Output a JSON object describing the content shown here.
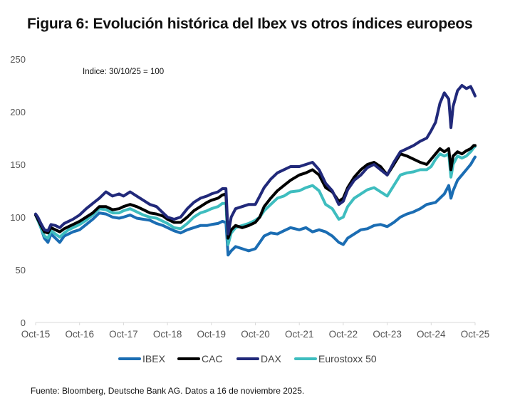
{
  "title": "Figura 6: Evolución histórica del Ibex vs otros índices europeos",
  "source": "Fuente: Bloomberg, Deutsche Bank AG. Datos a 16 de noviembre  2025.",
  "chart_data": {
    "type": "line",
    "title": "Figura 6: Evolución histórica del Ibex vs otros índices europeos",
    "annotation": "Indice: 30/10/25 = 100",
    "xlabel": "",
    "ylabel": "",
    "ylim": [
      0,
      250
    ],
    "yticks": [
      0,
      50,
      100,
      150,
      200,
      250
    ],
    "xlim_years_since_oct15": [
      0,
      10
    ],
    "xtick_labels": [
      "Oct-15",
      "Oct-16",
      "Oct-17",
      "Oct-18",
      "Oct-19",
      "Oct-20",
      "Oct-21",
      "Oct-22",
      "Oct-23",
      "Oct-24",
      "Oct-25"
    ],
    "grid": false,
    "legend_position": "bottom",
    "x_unit": "years since Oct-15",
    "series": [
      {
        "name": "IBEX",
        "color": "#1b6db3",
        "x": [
          0,
          0.05,
          0.12,
          0.2,
          0.28,
          0.35,
          0.45,
          0.55,
          0.65,
          0.75,
          0.85,
          1.0,
          1.15,
          1.3,
          1.45,
          1.6,
          1.75,
          1.9,
          2.0,
          2.15,
          2.3,
          2.45,
          2.6,
          2.75,
          2.9,
          3.0,
          3.15,
          3.3,
          3.45,
          3.6,
          3.75,
          3.9,
          4.0,
          4.15,
          4.25,
          4.33,
          4.38,
          4.45,
          4.55,
          4.7,
          4.85,
          5.0,
          5.1,
          5.2,
          5.35,
          5.5,
          5.65,
          5.8,
          6.0,
          6.15,
          6.3,
          6.45,
          6.6,
          6.75,
          6.9,
          7.0,
          7.1,
          7.25,
          7.4,
          7.55,
          7.7,
          7.85,
          8.0,
          8.15,
          8.3,
          8.45,
          8.6,
          8.75,
          8.9,
          9.0,
          9.1,
          9.2,
          9.3,
          9.4,
          9.45,
          9.5,
          9.6,
          9.7,
          9.8,
          9.9,
          9.97,
          10.0
        ],
        "values": [
          102,
          98,
          90,
          80,
          76,
          84,
          80,
          76,
          82,
          84,
          86,
          88,
          93,
          98,
          104,
          103,
          100,
          99,
          100,
          102,
          99,
          98,
          97,
          94,
          92,
          90,
          87,
          85,
          88,
          90,
          92,
          92,
          93,
          94,
          96,
          95,
          64,
          68,
          72,
          70,
          68,
          70,
          76,
          82,
          85,
          84,
          87,
          90,
          88,
          90,
          86,
          88,
          86,
          82,
          76,
          74,
          80,
          84,
          88,
          89,
          92,
          93,
          91,
          95,
          100,
          103,
          105,
          108,
          112,
          113,
          114,
          118,
          122,
          130,
          118,
          125,
          135,
          140,
          145,
          150,
          155,
          157
        ]
      },
      {
        "name": "CAC",
        "color": "#000000",
        "x": [
          0,
          0.05,
          0.12,
          0.2,
          0.28,
          0.35,
          0.45,
          0.55,
          0.65,
          0.75,
          0.85,
          1.0,
          1.15,
          1.3,
          1.45,
          1.6,
          1.75,
          1.9,
          2.0,
          2.15,
          2.3,
          2.45,
          2.6,
          2.75,
          2.9,
          3.0,
          3.15,
          3.3,
          3.45,
          3.6,
          3.75,
          3.9,
          4.0,
          4.15,
          4.25,
          4.33,
          4.38,
          4.45,
          4.55,
          4.7,
          4.85,
          5.0,
          5.1,
          5.2,
          5.35,
          5.5,
          5.65,
          5.8,
          6.0,
          6.15,
          6.3,
          6.45,
          6.6,
          6.75,
          6.9,
          7.0,
          7.1,
          7.25,
          7.4,
          7.55,
          7.7,
          7.85,
          8.0,
          8.15,
          8.3,
          8.45,
          8.6,
          8.75,
          8.9,
          9.0,
          9.1,
          9.2,
          9.3,
          9.4,
          9.45,
          9.5,
          9.6,
          9.7,
          9.8,
          9.9,
          9.97,
          10.0
        ],
        "values": [
          102,
          98,
          92,
          86,
          85,
          90,
          88,
          86,
          89,
          91,
          93,
          96,
          100,
          104,
          110,
          110,
          107,
          108,
          110,
          112,
          110,
          107,
          104,
          103,
          101,
          98,
          95,
          95,
          100,
          106,
          110,
          114,
          116,
          118,
          121,
          122,
          80,
          88,
          92,
          90,
          92,
          95,
          100,
          110,
          118,
          125,
          130,
          135,
          140,
          142,
          145,
          140,
          128,
          124,
          115,
          118,
          128,
          138,
          145,
          150,
          152,
          148,
          140,
          150,
          160,
          158,
          155,
          152,
          150,
          155,
          160,
          165,
          162,
          165,
          145,
          158,
          162,
          160,
          163,
          165,
          168,
          168
        ]
      },
      {
        "name": "DAX",
        "color": "#21297a",
        "x": [
          0,
          0.05,
          0.12,
          0.2,
          0.28,
          0.35,
          0.45,
          0.55,
          0.65,
          0.75,
          0.85,
          1.0,
          1.15,
          1.3,
          1.45,
          1.6,
          1.75,
          1.9,
          2.0,
          2.15,
          2.3,
          2.45,
          2.6,
          2.75,
          2.9,
          3.0,
          3.15,
          3.3,
          3.45,
          3.6,
          3.75,
          3.9,
          4.0,
          4.15,
          4.25,
          4.33,
          4.38,
          4.45,
          4.55,
          4.7,
          4.85,
          5.0,
          5.1,
          5.2,
          5.35,
          5.5,
          5.65,
          5.8,
          6.0,
          6.15,
          6.3,
          6.45,
          6.6,
          6.75,
          6.9,
          7.0,
          7.1,
          7.25,
          7.4,
          7.55,
          7.7,
          7.85,
          8.0,
          8.15,
          8.3,
          8.45,
          8.6,
          8.75,
          8.9,
          9.0,
          9.1,
          9.2,
          9.3,
          9.4,
          9.45,
          9.5,
          9.6,
          9.7,
          9.8,
          9.9,
          9.97,
          10.0
        ],
        "values": [
          103,
          100,
          94,
          88,
          87,
          93,
          92,
          90,
          94,
          96,
          98,
          102,
          108,
          113,
          118,
          124,
          120,
          122,
          120,
          124,
          120,
          116,
          112,
          110,
          104,
          100,
          98,
          100,
          108,
          114,
          118,
          120,
          122,
          124,
          127,
          127,
          84,
          100,
          108,
          110,
          112,
          112,
          120,
          128,
          136,
          142,
          145,
          148,
          148,
          150,
          152,
          145,
          132,
          125,
          112,
          115,
          126,
          135,
          140,
          147,
          150,
          145,
          140,
          152,
          162,
          165,
          168,
          172,
          175,
          182,
          190,
          208,
          218,
          212,
          185,
          205,
          220,
          225,
          222,
          224,
          218,
          215
        ]
      },
      {
        "name": "Eurostoxx 50",
        "color": "#3ebdbf",
        "x": [
          0,
          0.05,
          0.12,
          0.2,
          0.28,
          0.35,
          0.45,
          0.55,
          0.65,
          0.75,
          0.85,
          1.0,
          1.15,
          1.3,
          1.45,
          1.6,
          1.75,
          1.9,
          2.0,
          2.15,
          2.3,
          2.45,
          2.6,
          2.75,
          2.9,
          3.0,
          3.15,
          3.3,
          3.45,
          3.6,
          3.75,
          3.9,
          4.0,
          4.15,
          4.25,
          4.33,
          4.38,
          4.45,
          4.55,
          4.7,
          4.85,
          5.0,
          5.1,
          5.2,
          5.35,
          5.5,
          5.65,
          5.8,
          6.0,
          6.15,
          6.3,
          6.45,
          6.6,
          6.75,
          6.9,
          7.0,
          7.1,
          7.25,
          7.4,
          7.55,
          7.7,
          7.85,
          8.0,
          8.15,
          8.3,
          8.45,
          8.6,
          8.75,
          8.9,
          9.0,
          9.1,
          9.2,
          9.3,
          9.4,
          9.45,
          9.5,
          9.6,
          9.7,
          9.8,
          9.9,
          9.97,
          10.0
        ],
        "values": [
          102,
          97,
          90,
          82,
          80,
          87,
          84,
          81,
          85,
          88,
          90,
          93,
          97,
          102,
          108,
          107,
          104,
          104,
          106,
          108,
          105,
          102,
          100,
          99,
          96,
          94,
          90,
          89,
          94,
          100,
          104,
          106,
          108,
          110,
          113,
          113,
          74,
          85,
          90,
          92,
          94,
          97,
          100,
          106,
          112,
          118,
          120,
          124,
          125,
          128,
          130,
          125,
          112,
          108,
          98,
          100,
          110,
          118,
          122,
          126,
          128,
          124,
          120,
          130,
          140,
          142,
          143,
          145,
          145,
          148,
          155,
          160,
          158,
          160,
          138,
          150,
          158,
          156,
          158,
          162,
          166,
          167
        ]
      }
    ]
  }
}
